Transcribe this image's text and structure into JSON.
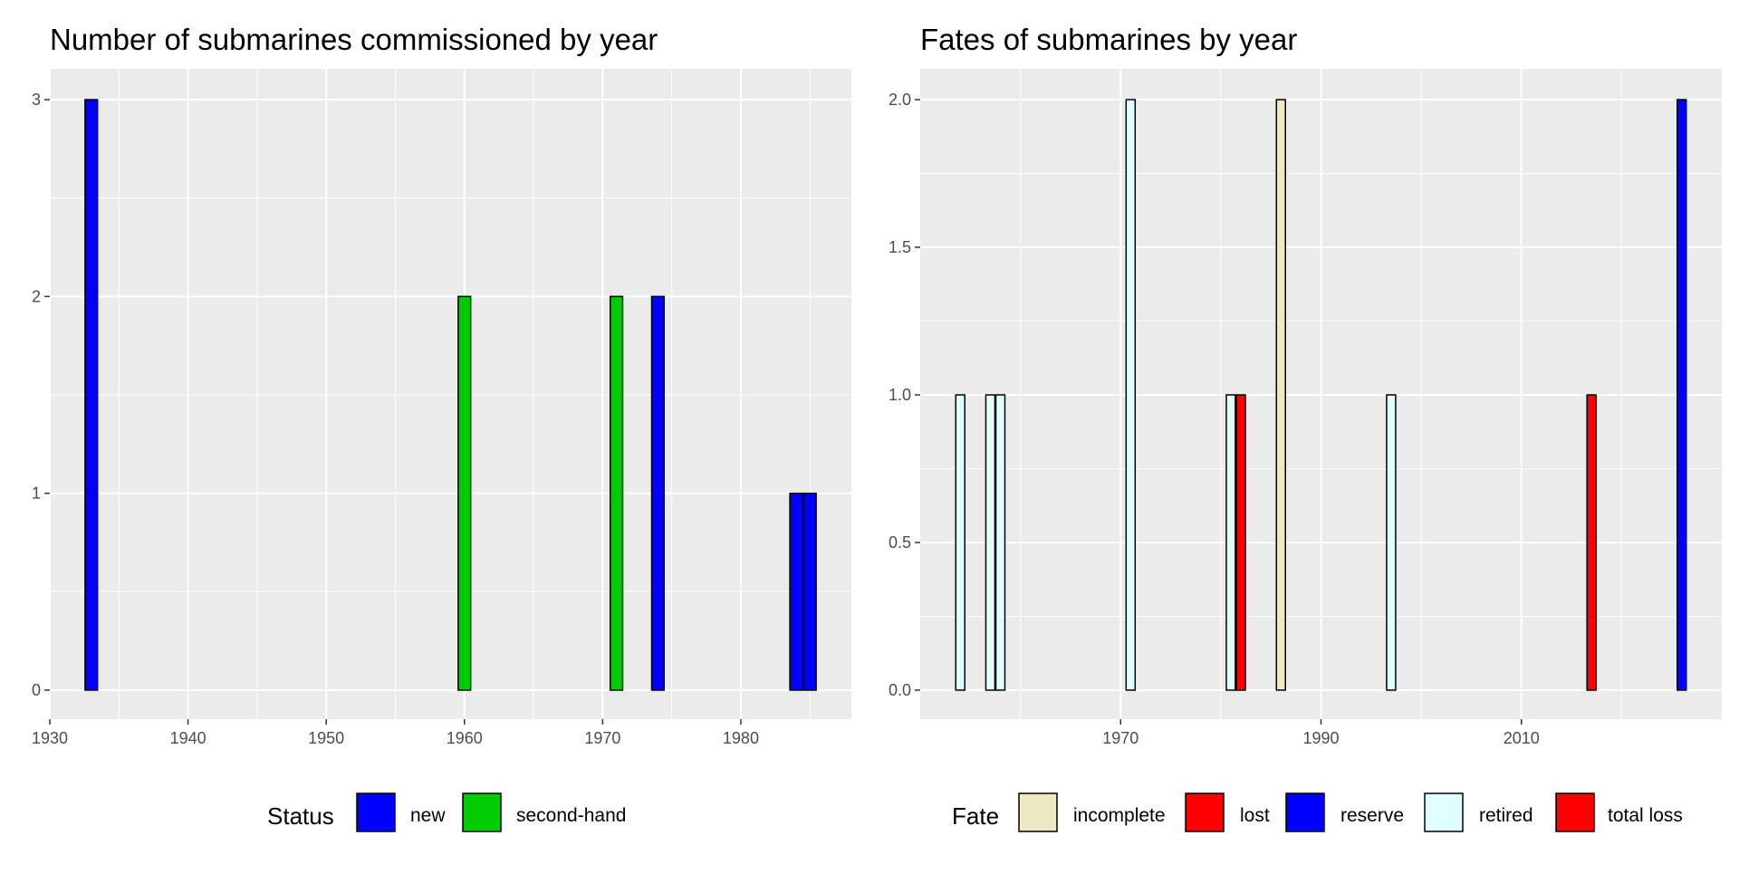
{
  "charts": [
    {
      "title": "Number of submarines commissioned by year",
      "legend": {
        "title": "Status",
        "entries": [
          {
            "label": "new",
            "color": "#0000ff"
          },
          {
            "label": "second-hand",
            "color": "#00cd00"
          }
        ]
      }
    },
    {
      "title": "Fates of submarines by year",
      "legend": {
        "title": "Fate",
        "entries": [
          {
            "label": "incomplete",
            "color": "#eee8c4"
          },
          {
            "label": "lost",
            "color": "#ff0000"
          },
          {
            "label": "reserve",
            "color": "#0000ff"
          },
          {
            "label": "retired",
            "color": "#e0ffff"
          },
          {
            "label": "total loss",
            "color": "#ff0000"
          }
        ]
      }
    }
  ],
  "chart_data": [
    {
      "type": "bar",
      "title": "Number of submarines commissioned by year",
      "xlabel": "",
      "ylabel": "",
      "xlim": [
        1930,
        1988
      ],
      "ylim": [
        0,
        3
      ],
      "x_ticks": [
        "1930",
        "1940",
        "1950",
        "1960",
        "1970",
        "1980"
      ],
      "y_ticks": [
        "0",
        "1",
        "2",
        "3"
      ],
      "bar_width_years": 0.9,
      "grid": true,
      "legend_position": "bottom",
      "series": [
        {
          "name": "new",
          "color": "#0000ff",
          "points": [
            [
              1933,
              3
            ],
            [
              1974,
              2
            ],
            [
              1984,
              1
            ],
            [
              1985,
              1
            ]
          ]
        },
        {
          "name": "second-hand",
          "color": "#00cd00",
          "points": [
            [
              1960,
              2
            ],
            [
              1971,
              2
            ]
          ]
        }
      ]
    },
    {
      "type": "bar",
      "title": "Fates of submarines by year",
      "xlabel": "",
      "ylabel": "",
      "xlim": [
        1950,
        2030
      ],
      "ylim": [
        0,
        2
      ],
      "x_ticks": [
        "1970",
        "1990",
        "2010"
      ],
      "y_ticks": [
        "0.0",
        "0.5",
        "1.0",
        "1.5",
        "2.0"
      ],
      "bar_width_years": 0.9,
      "grid": true,
      "legend_position": "bottom",
      "series": [
        {
          "name": "incomplete",
          "color": "#eee8c4",
          "points": [
            [
              1986,
              2
            ]
          ]
        },
        {
          "name": "lost",
          "color": "#ff0000",
          "points": [
            [
              1982,
              1
            ]
          ]
        },
        {
          "name": "reserve",
          "color": "#0000ff",
          "points": [
            [
              2026,
              2
            ]
          ]
        },
        {
          "name": "retired",
          "color": "#e0ffff",
          "points": [
            [
              1954,
              1
            ],
            [
              1957,
              1
            ],
            [
              1958,
              1
            ],
            [
              1971,
              2
            ],
            [
              1981,
              1
            ],
            [
              1997,
              1
            ]
          ]
        },
        {
          "name": "total loss",
          "color": "#ff0000",
          "points": [
            [
              2017,
              1
            ]
          ]
        }
      ]
    }
  ]
}
